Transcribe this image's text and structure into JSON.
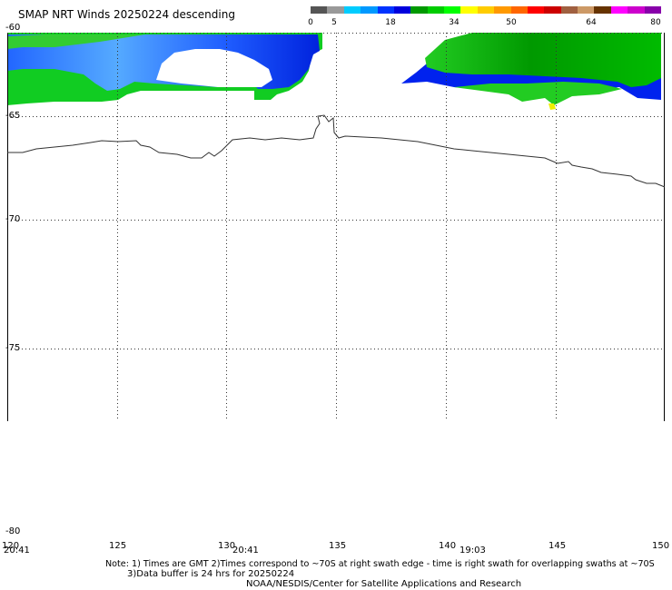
{
  "title": "SMAP NRT Winds  20250224 descending",
  "colorbar": {
    "labels": [
      "0",
      "5",
      "18",
      "34",
      "50",
      "64",
      "80"
    ],
    "colors": [
      "#555555",
      "#999999",
      "#00ccff",
      "#0099ff",
      "#0033ff",
      "#0000dd",
      "#009900",
      "#00cc00",
      "#00ff00",
      "#ffff00",
      "#ffcc00",
      "#ff9900",
      "#ff6600",
      "#ff0000",
      "#cc0000",
      "#a06040",
      "#cc9966",
      "#663300",
      "#ff00ff",
      "#cc00cc",
      "#8800aa"
    ]
  },
  "axes": {
    "lat_labels": [
      "-60",
      "-65",
      "-70",
      "-75",
      "-80"
    ],
    "lon_labels": [
      "120",
      "125",
      "130",
      "135",
      "140",
      "145",
      "150"
    ],
    "times": [
      "20:41",
      "20:41",
      "19:03"
    ]
  },
  "notes": {
    "line1": "Note: 1) Times are GMT 2)Times correspond to ~70S at right swath edge - time is right swath for overlapping swaths at ~70S",
    "line2": "3)Data buffer is 24 hrs for 20250224",
    "line3": "NOAA/NESDIS/Center for Satellite Applications and Research"
  }
}
